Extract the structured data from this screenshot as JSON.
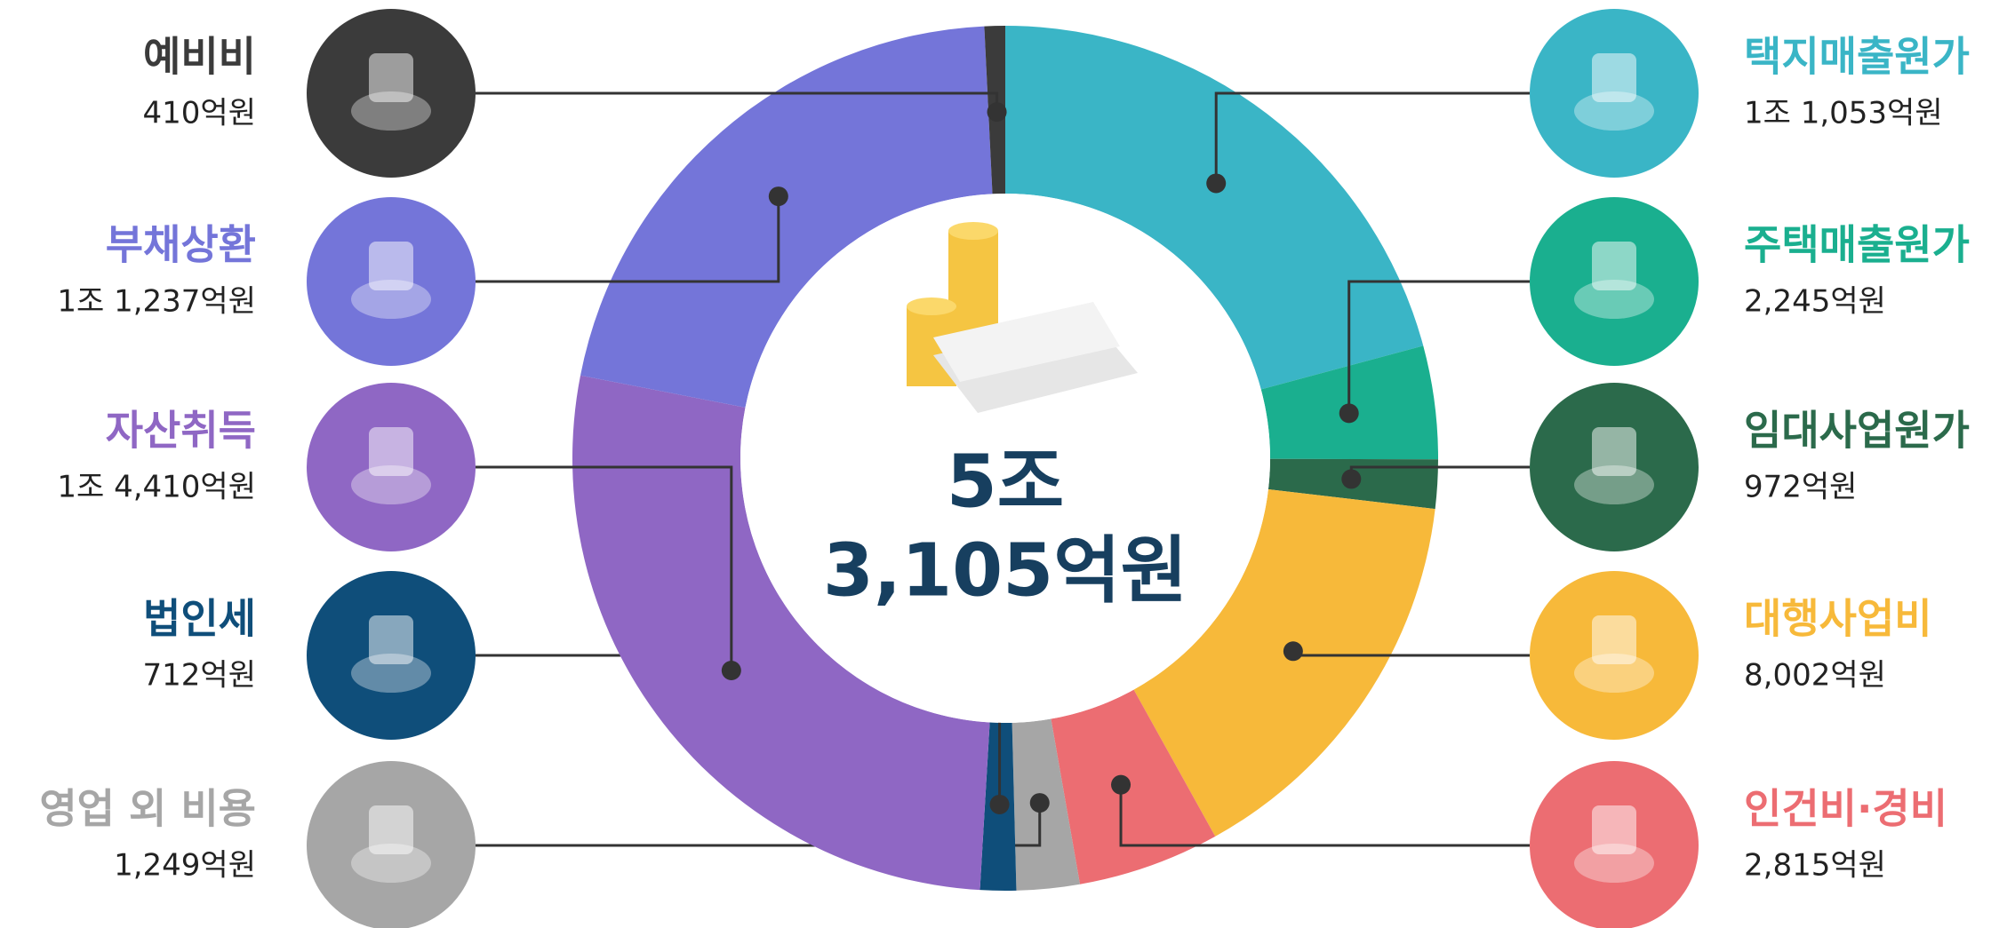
{
  "chart_data": {
    "type": "donut",
    "categories": [
      "택지매출원가",
      "주택매출원가",
      "임대사업원가",
      "대행사업비",
      "인건비·경비",
      "영업 외 비용",
      "법인세",
      "자산취득",
      "부채상환",
      "예비비"
    ],
    "values": [
      11053,
      2245,
      972,
      8002,
      2815,
      1249,
      712,
      14410,
      11237,
      410
    ],
    "value_labels": [
      "1조 1,053억원",
      "2,245억원",
      "972억원",
      "8,002억원",
      "2,815억원",
      "1,249억원",
      "712억원",
      "1조 4,410억원",
      "1조 1,237억원",
      "410억원"
    ],
    "colors": [
      "#3ab5c6",
      "#1aaf8f",
      "#2b6a4b",
      "#f7b93a",
      "#ec6d72",
      "#a6a6a6",
      "#0f4e7a",
      "#8f67c4",
      "#7475d9",
      "#3b3b3b"
    ],
    "center_label": [
      "5조",
      "3,105억원"
    ]
  }
}
